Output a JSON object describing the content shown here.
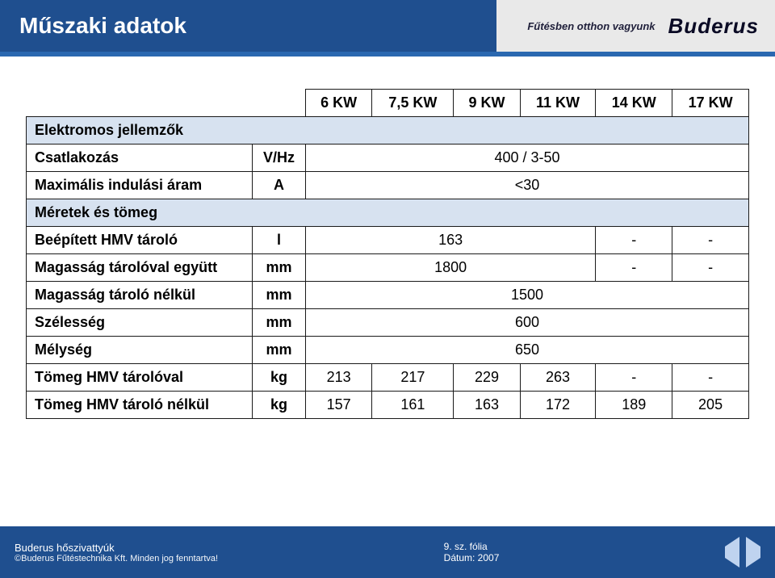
{
  "header": {
    "title": "Műszaki adatok",
    "tagline": "Fűtésben otthon vagyunk",
    "brand": "Buderus"
  },
  "colors": {
    "header_bg": "#1f4f8f",
    "header_right_bg": "#e9e9e9",
    "divider": "#2a68b0",
    "section_row_bg": "#d7e2f0",
    "border": "#1a1a1a",
    "nav_triangle": "#bfd3ef",
    "text_white": "#ffffff"
  },
  "table": {
    "type": "table",
    "columns": [
      "6 KW",
      "7,5 KW",
      "9 KW",
      "11 KW",
      "14 KW",
      "17 KW"
    ],
    "sections": [
      {
        "title": "Elektromos jellemzők",
        "rows": [
          {
            "label": "Csatlakozás",
            "unit": "V/Hz",
            "value": "400 / 3-50"
          },
          {
            "label": "Maximális indulási áram",
            "unit": "A",
            "value": "<30"
          }
        ]
      },
      {
        "title": "Méretek és tömeg",
        "rows": [
          {
            "label": "Beépített HMV tároló",
            "unit": "l",
            "value": "163",
            "extra": [
              "-",
              "-"
            ]
          },
          {
            "label": "Magasság tárolóval együtt",
            "unit": "mm",
            "value": "1800",
            "extra": [
              "-",
              "-"
            ]
          },
          {
            "label": "Magasság tároló nélkül",
            "unit": "mm",
            "value": "1500"
          },
          {
            "label": "Szélesség",
            "unit": "mm",
            "value": "600"
          },
          {
            "label": "Mélység",
            "unit": "mm",
            "value": "650"
          },
          {
            "label": "Tömeg HMV tárolóval",
            "unit": "kg",
            "values": [
              "213",
              "217",
              "229",
              "263",
              "-",
              "-"
            ]
          },
          {
            "label": "Tömeg HMV tároló nélkül",
            "unit": "kg",
            "values": [
              "157",
              "161",
              "163",
              "172",
              "189",
              "205"
            ]
          }
        ]
      }
    ]
  },
  "footer": {
    "left": {
      "line1": "Buderus hőszivattyúk",
      "line2": "©Buderus Fűtéstechnika Kft. Minden jog fenntartva!"
    },
    "mid": {
      "line1": "9. sz. fólia",
      "line2": "Dátum: 2007"
    }
  }
}
